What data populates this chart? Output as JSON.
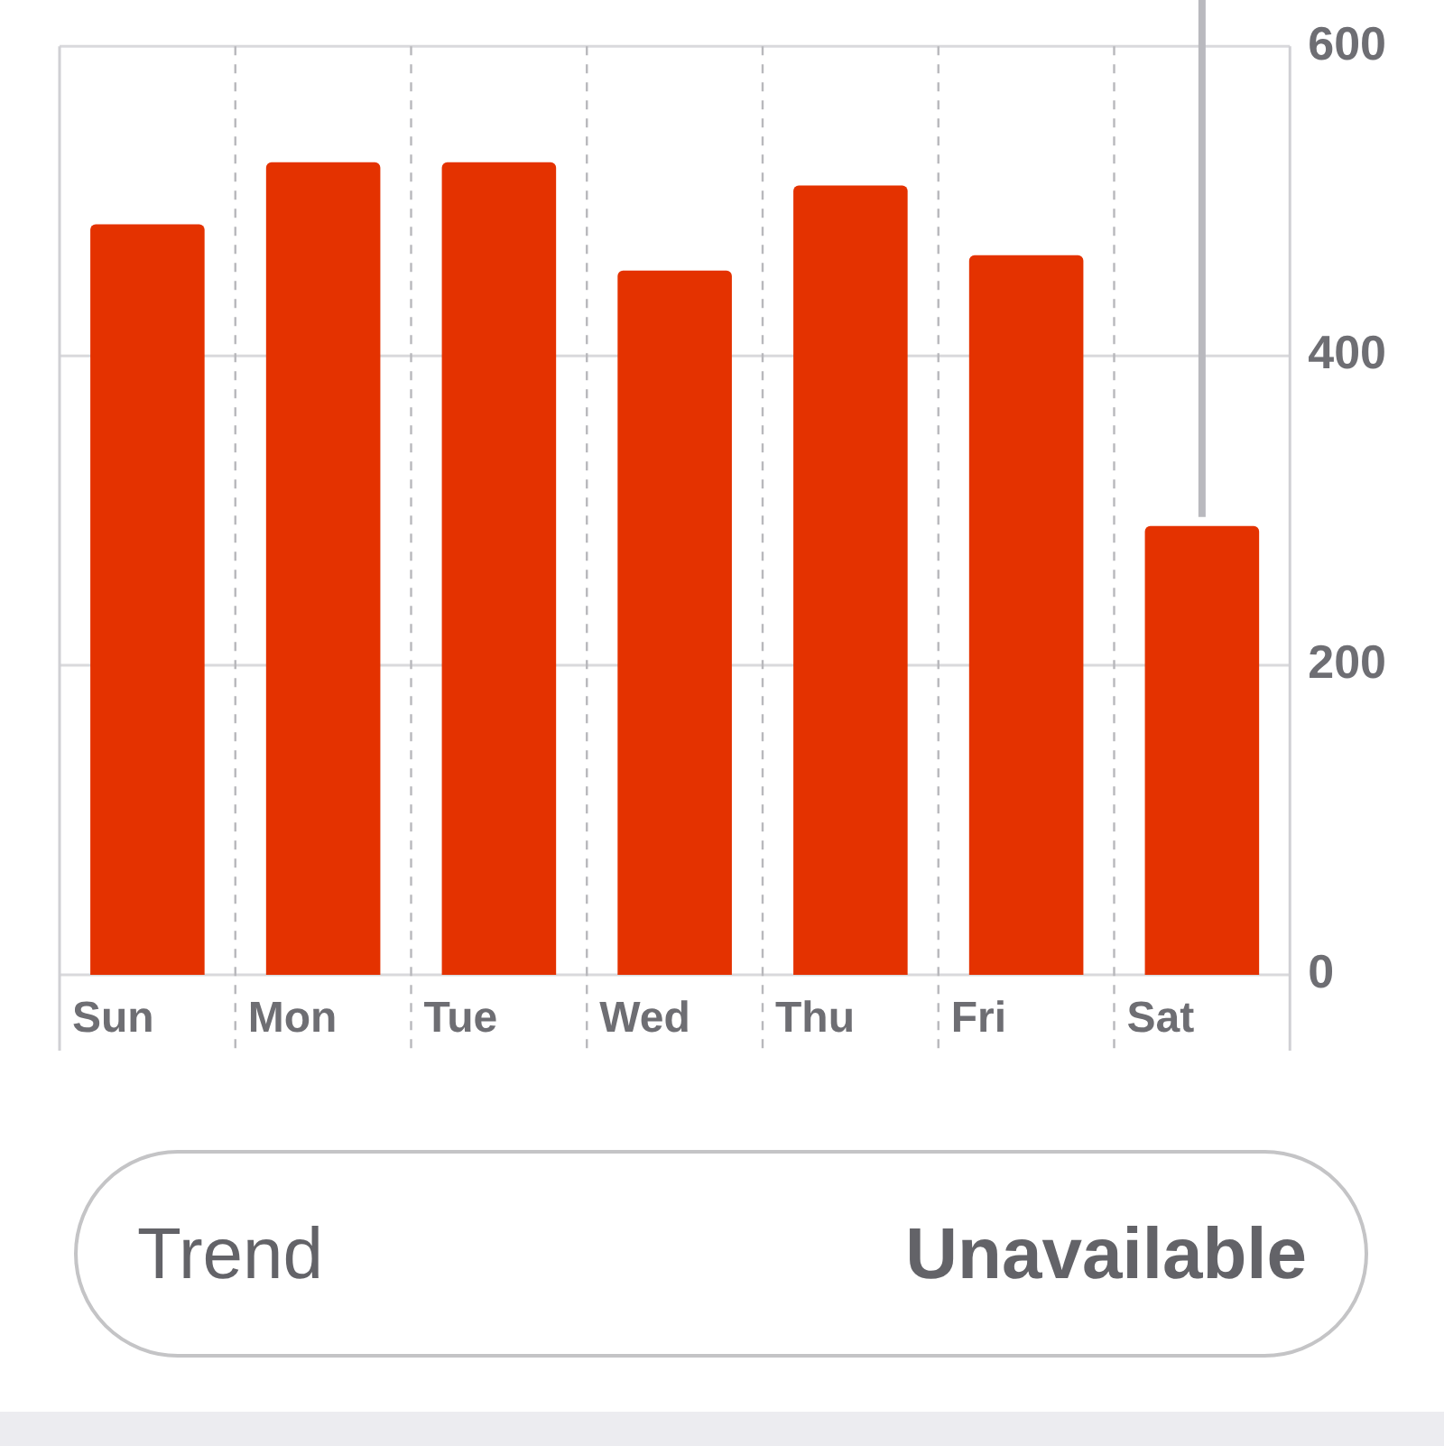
{
  "chart_data": {
    "type": "bar",
    "categories": [
      "Sun",
      "Mon",
      "Tue",
      "Wed",
      "Thu",
      "Fri",
      "Sat"
    ],
    "values": [
      485,
      525,
      525,
      455,
      510,
      465,
      290
    ],
    "color": "#e43200",
    "ylim": [
      0,
      600
    ],
    "yticks": [
      0,
      200,
      400,
      600
    ],
    "grid": true,
    "ref_lines": [
      {
        "axis": "x",
        "value": "Sat",
        "color": "#b9b9be"
      }
    ],
    "annotations": [
      "Trend",
      "Unavailable"
    ]
  }
}
